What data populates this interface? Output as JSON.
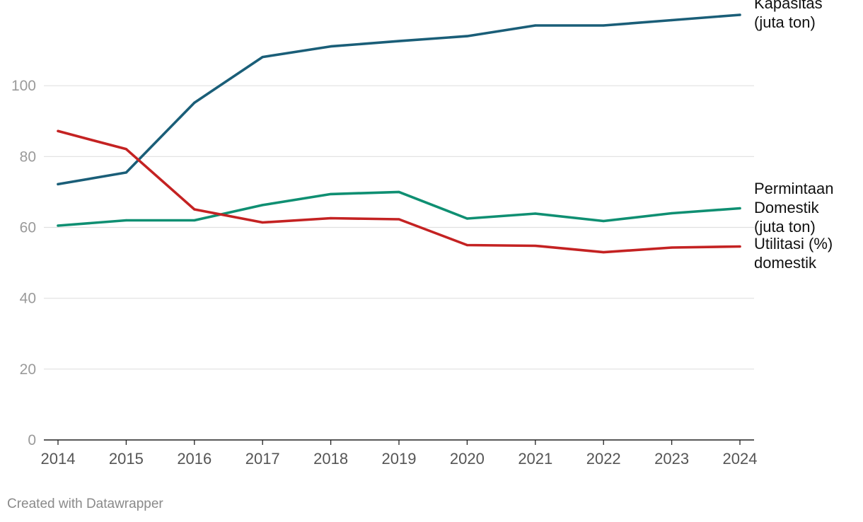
{
  "chart_data": {
    "type": "line",
    "title": "",
    "xlabel": "",
    "ylabel": "",
    "x": [
      "2014",
      "2015",
      "2016",
      "2017",
      "2018",
      "2019",
      "2020",
      "2021",
      "2022",
      "2023",
      "2024"
    ],
    "ylim": [
      0,
      120
    ],
    "yticks": [
      0,
      20,
      40,
      60,
      80,
      100
    ],
    "grid": true,
    "series": [
      {
        "name": "Kapasitas (juta ton)",
        "label_lines": [
          "Kapasitas",
          "(juta ton)"
        ],
        "color": "#1a5e78",
        "values": [
          72.2,
          75.5,
          95.2,
          108.1,
          111.1,
          112.6,
          114,
          117,
          117,
          118.5,
          120
        ]
      },
      {
        "name": "Permintaan Domestik (juta ton)",
        "label_lines": [
          "Permintaan",
          "Domestik",
          "(juta ton)"
        ],
        "color": "#0f8f72",
        "values": [
          60.5,
          62,
          62,
          66.3,
          69.4,
          70,
          62.5,
          63.9,
          61.8,
          64,
          65.4
        ]
      },
      {
        "name": "Utilitasi (%) domestik",
        "label_lines": [
          "Utilitasi (%)",
          "domestik"
        ],
        "color": "#c42222",
        "values": [
          87.2,
          82.1,
          65.1,
          61.4,
          62.6,
          62.3,
          55,
          54.8,
          53,
          54.3,
          54.6
        ]
      }
    ]
  },
  "footer": {
    "credit": "Created with Datawrapper"
  }
}
